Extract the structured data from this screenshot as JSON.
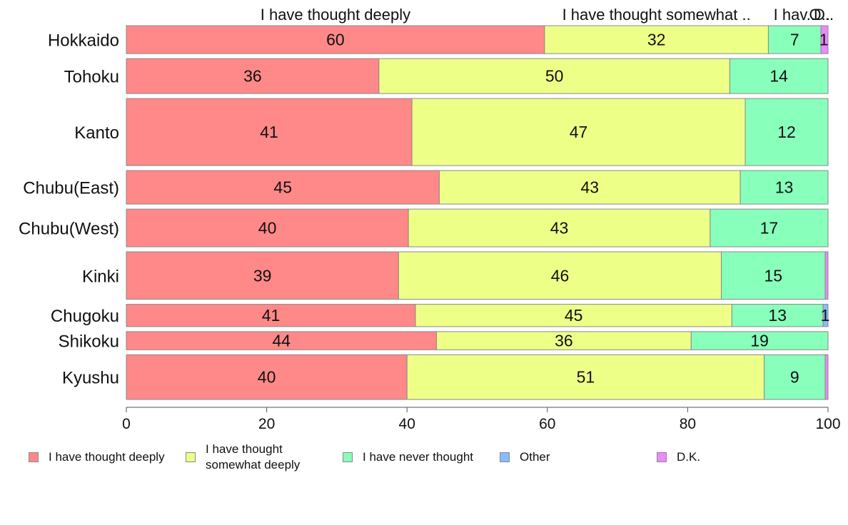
{
  "chart_data": {
    "type": "bar",
    "orientation": "horizontal",
    "stacked": true,
    "categories": [
      "Hokkaido",
      "Tohoku",
      "Kanto",
      "Chubu(East)",
      "Chubu(West)",
      "Kinki",
      "Chugoku",
      "Shikoku",
      "Kyushu"
    ],
    "series": [
      {
        "name": "I have thought deeply",
        "top_label": "I have thought deeply",
        "color": "#ff8888",
        "values": [
          59.6,
          36.0,
          40.7,
          44.6,
          40.2,
          38.8,
          41.2,
          44.2,
          40.0
        ],
        "labels": [
          "60",
          "36",
          "41",
          "45",
          "40",
          "39",
          "41",
          "44",
          "40"
        ]
      },
      {
        "name": "I have thought somewhat deeply",
        "top_label": "I have thought somewhat ..",
        "color": "#eeff88",
        "values": [
          31.9,
          50.0,
          47.5,
          42.9,
          43.0,
          46.0,
          45.1,
          36.3,
          50.9
        ],
        "labels": [
          "32",
          "50",
          "47",
          "43",
          "43",
          "46",
          "45",
          "36",
          "51"
        ]
      },
      {
        "name": "I have never thought",
        "top_label": "I hav..",
        "color": "#88ffbb",
        "values": [
          7.5,
          14.0,
          11.8,
          12.5,
          16.8,
          14.8,
          13.0,
          19.5,
          8.7
        ],
        "labels": [
          "7",
          "14",
          "12",
          "13",
          "17",
          "15",
          "13",
          "19",
          "9"
        ]
      },
      {
        "name": "Other",
        "top_label": "O..",
        "color": "#88bbff",
        "values": [
          0.0,
          0.0,
          0.0,
          0.0,
          0.0,
          0.0,
          0.7,
          0.0,
          0.0
        ],
        "labels": [
          "",
          "",
          "",
          "",
          "",
          "",
          "1",
          "",
          ""
        ]
      },
      {
        "name": "D.K.",
        "top_label": "D..",
        "color": "#ee88ff",
        "values": [
          1.0,
          0.0,
          0.0,
          0.0,
          0.0,
          0.4,
          0.0,
          0.0,
          0.4
        ],
        "labels": [
          "1",
          "",
          "",
          "",
          "",
          "",
          "",
          "",
          ""
        ]
      }
    ],
    "row_weights": [
      1.0,
      1.25,
      2.4,
      1.2,
      1.35,
      1.7,
      0.8,
      0.65,
      1.6
    ],
    "xlim": [
      0,
      100
    ],
    "xticks": [
      "0",
      "20",
      "40",
      "60",
      "80",
      "100"
    ],
    "grid": false,
    "legend_position": "bottom",
    "legend": {
      "items": [
        {
          "label": "I have thought deeply",
          "color": "#ff8888"
        },
        {
          "label": "I have thought somewhat deeply",
          "color": "#eeff88"
        },
        {
          "label": "I have never thought",
          "color": "#88ffbb"
        },
        {
          "label": "Other",
          "color": "#88bbff"
        },
        {
          "label": "D.K.",
          "color": "#ee88ff"
        }
      ]
    }
  }
}
